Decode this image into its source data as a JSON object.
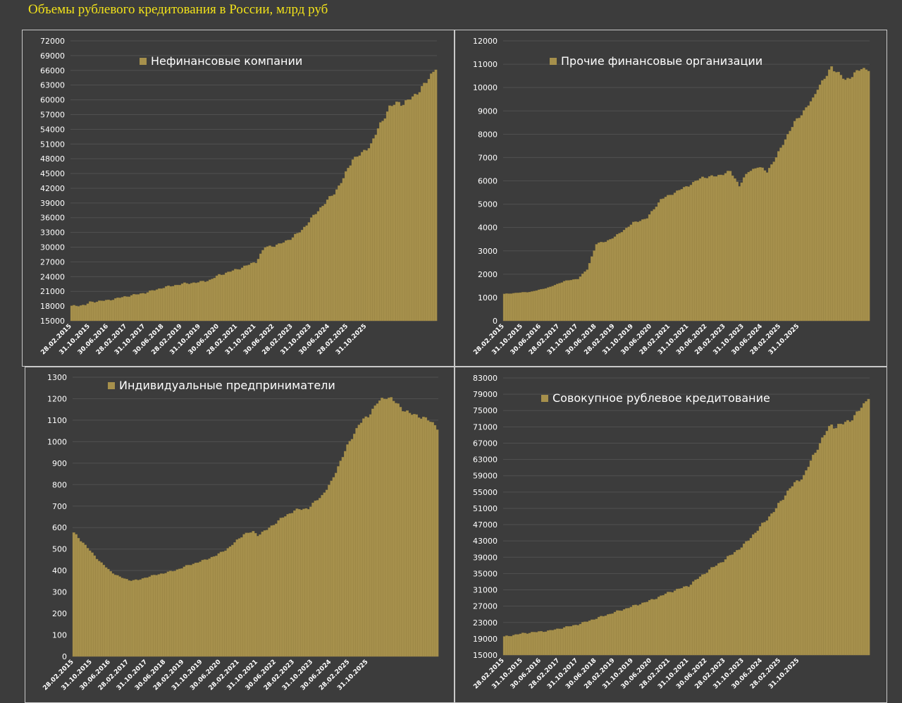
{
  "page_title": "Объемы рублевого кредитования в России, млрд руб",
  "colors": {
    "background": "#3c3c3c",
    "bar": "#a6904c",
    "bar_edge": "#8f7b3c",
    "grid": "#505050",
    "title": "#f2e21a",
    "text": "#ffffff",
    "border": "#c9c9c9"
  },
  "x_ticks": [
    "28.02.2015",
    "31.10.2015",
    "30.06.2016",
    "28.02.2017",
    "31.10.2017",
    "30.06.2018",
    "28.02.2019",
    "31.10.2019",
    "30.06.2020",
    "28.02.2021",
    "31.10.2021",
    "30.06.2022",
    "28.02.2023",
    "31.10.2023",
    "30.06.2024",
    "28.02.2025",
    "31.10.2025"
  ],
  "chart_data": [
    {
      "type": "bar",
      "legend": "Нефинансовые компании",
      "ylim": [
        15000,
        72000
      ],
      "yticks": [
        "15000",
        "18000",
        "21000",
        "24000",
        "27000",
        "30000",
        "33000",
        "36000",
        "39000",
        "42000",
        "45000",
        "48000",
        "51000",
        "54000",
        "57000",
        "60000",
        "63000",
        "66000",
        "69000",
        "72000"
      ],
      "x_start": "28.02.2015",
      "x_end": "31.12.2025",
      "frequency": "monthly",
      "anchors": [
        [
          0,
          18000
        ],
        [
          6,
          18200
        ],
        [
          8,
          18800
        ],
        [
          16,
          19200
        ],
        [
          24,
          20000
        ],
        [
          32,
          20700
        ],
        [
          40,
          21800
        ],
        [
          48,
          22500
        ],
        [
          56,
          22900
        ],
        [
          60,
          23300
        ],
        [
          64,
          24300
        ],
        [
          72,
          25500
        ],
        [
          80,
          27000
        ],
        [
          84,
          30000
        ],
        [
          90,
          30500
        ],
        [
          96,
          32000
        ],
        [
          100,
          33500
        ],
        [
          108,
          38000
        ],
        [
          114,
          41000
        ],
        [
          118,
          44000
        ],
        [
          122,
          48000
        ],
        [
          126,
          49000
        ],
        [
          130,
          51000
        ],
        [
          134,
          55000
        ],
        [
          138,
          58500
        ],
        [
          142,
          59500
        ],
        [
          144,
          59200
        ],
        [
          148,
          60500
        ],
        [
          152,
          62500
        ],
        [
          154,
          63500
        ],
        [
          158,
          66700
        ]
      ]
    },
    {
      "type": "bar",
      "legend": "Прочие финансовые организации",
      "ylim": [
        0,
        12000
      ],
      "yticks": [
        "0",
        "1000",
        "2000",
        "3000",
        "4000",
        "5000",
        "6000",
        "7000",
        "8000",
        "9000",
        "10000",
        "11000",
        "12000"
      ],
      "x_start": "28.02.2015",
      "x_end": "31.12.2025",
      "frequency": "monthly",
      "anchors": [
        [
          0,
          1150
        ],
        [
          12,
          1250
        ],
        [
          20,
          1450
        ],
        [
          26,
          1700
        ],
        [
          32,
          1800
        ],
        [
          36,
          2200
        ],
        [
          40,
          3300
        ],
        [
          44,
          3400
        ],
        [
          48,
          3600
        ],
        [
          56,
          4200
        ],
        [
          62,
          4400
        ],
        [
          68,
          5200
        ],
        [
          74,
          5500
        ],
        [
          80,
          5800
        ],
        [
          86,
          6150
        ],
        [
          92,
          6200
        ],
        [
          98,
          6400
        ],
        [
          102,
          5800
        ],
        [
          106,
          6400
        ],
        [
          110,
          6600
        ],
        [
          114,
          6400
        ],
        [
          118,
          7000
        ],
        [
          122,
          7800
        ],
        [
          126,
          8500
        ],
        [
          130,
          9000
        ],
        [
          134,
          9500
        ],
        [
          136,
          10000
        ],
        [
          140,
          10500
        ],
        [
          142,
          10900
        ],
        [
          144,
          10700
        ],
        [
          148,
          10300
        ],
        [
          152,
          10600
        ],
        [
          155,
          10800
        ],
        [
          158,
          10800
        ]
      ]
    },
    {
      "type": "bar",
      "legend": "Индивидуальные предприниматели",
      "ylim": [
        0,
        1300
      ],
      "yticks": [
        "0",
        "100",
        "200",
        "300",
        "400",
        "500",
        "600",
        "700",
        "800",
        "900",
        "1000",
        "1100",
        "1200",
        "1300"
      ],
      "x_start": "28.02.2015",
      "x_end": "31.12.2025",
      "frequency": "monthly",
      "anchors": [
        [
          0,
          575
        ],
        [
          4,
          530
        ],
        [
          8,
          480
        ],
        [
          12,
          435
        ],
        [
          16,
          395
        ],
        [
          20,
          370
        ],
        [
          24,
          355
        ],
        [
          28,
          355
        ],
        [
          32,
          370
        ],
        [
          38,
          385
        ],
        [
          44,
          400
        ],
        [
          50,
          425
        ],
        [
          56,
          445
        ],
        [
          62,
          470
        ],
        [
          68,
          510
        ],
        [
          74,
          570
        ],
        [
          78,
          580
        ],
        [
          80,
          565
        ],
        [
          84,
          590
        ],
        [
          90,
          640
        ],
        [
          96,
          680
        ],
        [
          102,
          690
        ],
        [
          108,
          750
        ],
        [
          112,
          810
        ],
        [
          116,
          910
        ],
        [
          120,
          1000
        ],
        [
          124,
          1080
        ],
        [
          128,
          1120
        ],
        [
          132,
          1180
        ],
        [
          136,
          1210
        ],
        [
          138,
          1200
        ],
        [
          142,
          1160
        ],
        [
          146,
          1130
        ],
        [
          150,
          1120
        ],
        [
          154,
          1100
        ],
        [
          157,
          1080
        ],
        [
          158,
          1065
        ]
      ]
    },
    {
      "type": "bar",
      "legend": "Совокупное рублевое кредитование",
      "ylim": [
        15000,
        83000
      ],
      "yticks": [
        "15000",
        "19000",
        "23000",
        "27000",
        "31000",
        "35000",
        "39000",
        "43000",
        "47000",
        "51000",
        "55000",
        "59000",
        "63000",
        "67000",
        "71000",
        "75000",
        "79000",
        "83000"
      ],
      "x_start": "28.02.2015",
      "x_end": "31.12.2025",
      "frequency": "monthly",
      "anchors": [
        [
          0,
          19500
        ],
        [
          8,
          20300
        ],
        [
          20,
          21000
        ],
        [
          32,
          22500
        ],
        [
          40,
          24000
        ],
        [
          48,
          25500
        ],
        [
          56,
          27000
        ],
        [
          64,
          28500
        ],
        [
          72,
          30500
        ],
        [
          80,
          32000
        ],
        [
          88,
          35500
        ],
        [
          96,
          38500
        ],
        [
          104,
          42000
        ],
        [
          112,
          47000
        ],
        [
          118,
          51000
        ],
        [
          124,
          56000
        ],
        [
          130,
          59000
        ],
        [
          136,
          66000
        ],
        [
          140,
          70000
        ],
        [
          142,
          71500
        ],
        [
          144,
          71000
        ],
        [
          148,
          72000
        ],
        [
          152,
          73500
        ],
        [
          156,
          76500
        ],
        [
          158,
          78500
        ]
      ]
    }
  ]
}
